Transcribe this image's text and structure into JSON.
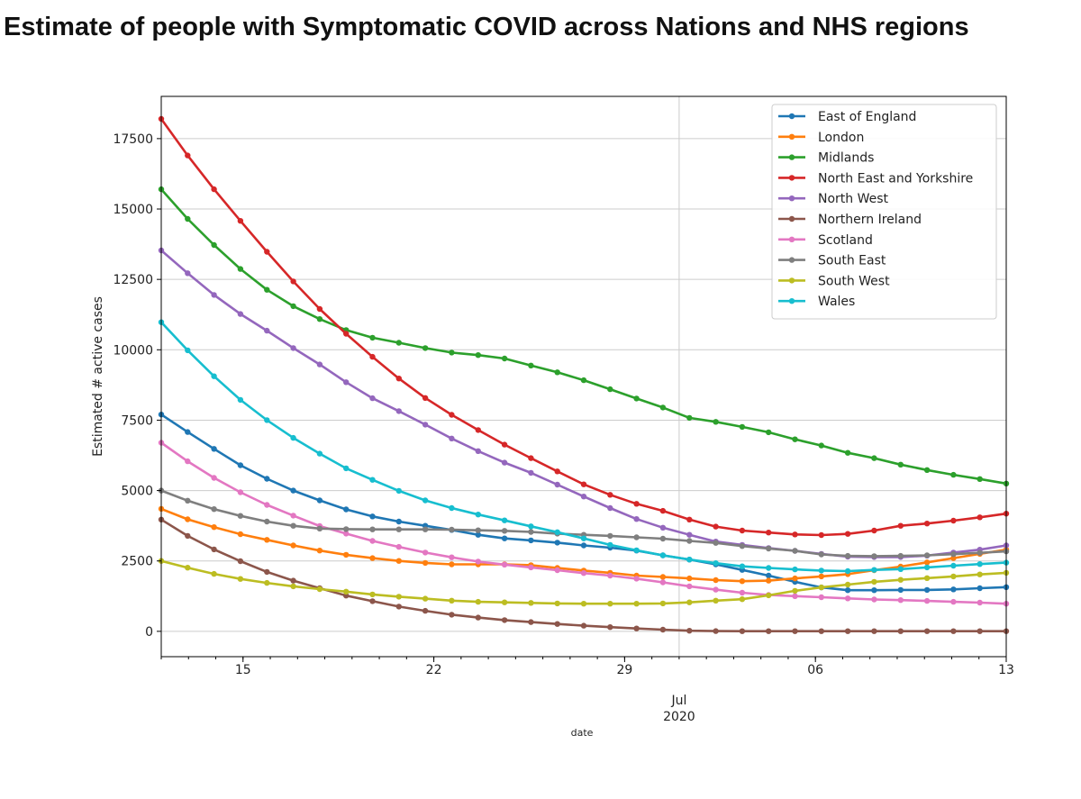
{
  "title": "Estimate of people with Symptomatic COVID across Nations and NHS regions",
  "chart_data": {
    "type": "line",
    "xlabel": "date",
    "ylabel": "Estimated # active cases",
    "x_start": "2020-06-12",
    "x_end": "2020-07-13",
    "xlim": [
      "2020-06-12",
      "2020-07-13"
    ],
    "ylim": [
      -900,
      19000
    ],
    "grid": true,
    "legend_position": "top-right",
    "x_tick_labels": [
      "15",
      "22",
      "29",
      "06",
      "13"
    ],
    "x_tick_dates": [
      "2020-06-15",
      "2020-06-22",
      "2020-06-29",
      "2020-07-06",
      "2020-07-13"
    ],
    "x_month_label": "Jul",
    "x_year_label": "2020",
    "x_month_date": "2020-07-01",
    "y_ticks": [
      0,
      2500,
      5000,
      7500,
      10000,
      12500,
      15000,
      17500
    ],
    "series": [
      {
        "name": "East of England",
        "color": "#1f77b4",
        "values": [
          7700,
          7080,
          6480,
          5900,
          5420,
          5000,
          4650,
          4330,
          4080,
          3900,
          3750,
          3600,
          3430,
          3300,
          3230,
          3150,
          3050,
          2970,
          2870,
          2700,
          2550,
          2380,
          2180,
          1980,
          1760,
          1560,
          1460,
          1460,
          1470,
          1470,
          1490,
          1530,
          1570
        ]
      },
      {
        "name": "London",
        "color": "#ff7f0e",
        "values": [
          4350,
          3980,
          3700,
          3450,
          3250,
          3050,
          2870,
          2720,
          2600,
          2500,
          2430,
          2380,
          2380,
          2380,
          2350,
          2250,
          2160,
          2080,
          1980,
          1930,
          1880,
          1820,
          1780,
          1800,
          1880,
          1950,
          2030,
          2170,
          2300,
          2450,
          2600,
          2750,
          2900
        ]
      },
      {
        "name": "Midlands",
        "color": "#2ca02c",
        "values": [
          15700,
          14650,
          13720,
          12870,
          12130,
          11550,
          11090,
          10700,
          10430,
          10250,
          10060,
          9900,
          9810,
          9690,
          9440,
          9200,
          8920,
          8600,
          8270,
          7950,
          7580,
          7440,
          7260,
          7070,
          6820,
          6600,
          6340,
          6150,
          5920,
          5730,
          5560,
          5410,
          5250
        ]
      },
      {
        "name": "North East and Yorkshire",
        "color": "#d62728",
        "values": [
          18200,
          16900,
          15700,
          14580,
          13480,
          12430,
          11450,
          10570,
          9750,
          8980,
          8290,
          7690,
          7150,
          6630,
          6150,
          5680,
          5220,
          4850,
          4530,
          4280,
          3970,
          3720,
          3580,
          3510,
          3440,
          3420,
          3460,
          3580,
          3750,
          3830,
          3930,
          4050,
          4180
        ]
      },
      {
        "name": "North West",
        "color": "#9467bd",
        "values": [
          13530,
          12720,
          11950,
          11270,
          10680,
          10060,
          9480,
          8850,
          8280,
          7820,
          7340,
          6850,
          6400,
          5990,
          5630,
          5210,
          4790,
          4380,
          3990,
          3680,
          3430,
          3190,
          3070,
          2960,
          2860,
          2750,
          2650,
          2640,
          2640,
          2690,
          2800,
          2900,
          3050
        ]
      },
      {
        "name": "Northern Ireland",
        "color": "#8c564b",
        "values": [
          3970,
          3390,
          2910,
          2490,
          2110,
          1800,
          1530,
          1270,
          1070,
          880,
          730,
          590,
          490,
          400,
          330,
          260,
          200,
          150,
          100,
          60,
          20,
          10,
          5,
          5,
          5,
          5,
          5,
          5,
          5,
          5,
          5,
          5,
          5
        ]
      },
      {
        "name": "Scotland",
        "color": "#e377c2",
        "values": [
          6700,
          6040,
          5450,
          4940,
          4490,
          4110,
          3740,
          3470,
          3210,
          3000,
          2800,
          2630,
          2480,
          2370,
          2270,
          2170,
          2070,
          1980,
          1870,
          1740,
          1600,
          1480,
          1370,
          1290,
          1250,
          1210,
          1170,
          1130,
          1110,
          1080,
          1050,
          1020,
          980
        ]
      },
      {
        "name": "South East",
        "color": "#7f7f7f",
        "values": [
          5000,
          4640,
          4340,
          4100,
          3900,
          3750,
          3650,
          3630,
          3620,
          3620,
          3620,
          3610,
          3590,
          3570,
          3530,
          3470,
          3430,
          3390,
          3340,
          3290,
          3210,
          3140,
          3030,
          2940,
          2860,
          2730,
          2680,
          2670,
          2680,
          2700,
          2740,
          2790,
          2840
        ]
      },
      {
        "name": "South West",
        "color": "#bcbd22",
        "values": [
          2500,
          2260,
          2040,
          1860,
          1720,
          1600,
          1500,
          1410,
          1310,
          1230,
          1160,
          1090,
          1050,
          1030,
          1010,
          990,
          980,
          980,
          980,
          990,
          1030,
          1090,
          1140,
          1280,
          1440,
          1560,
          1660,
          1760,
          1830,
          1890,
          1950,
          2020,
          2080
        ]
      },
      {
        "name": "Wales",
        "color": "#17becf",
        "values": [
          10980,
          9980,
          9060,
          8220,
          7500,
          6870,
          6310,
          5790,
          5380,
          4990,
          4650,
          4380,
          4150,
          3940,
          3730,
          3520,
          3300,
          3070,
          2880,
          2700,
          2550,
          2420,
          2310,
          2250,
          2200,
          2160,
          2140,
          2180,
          2210,
          2270,
          2330,
          2390,
          2440
        ]
      }
    ]
  }
}
